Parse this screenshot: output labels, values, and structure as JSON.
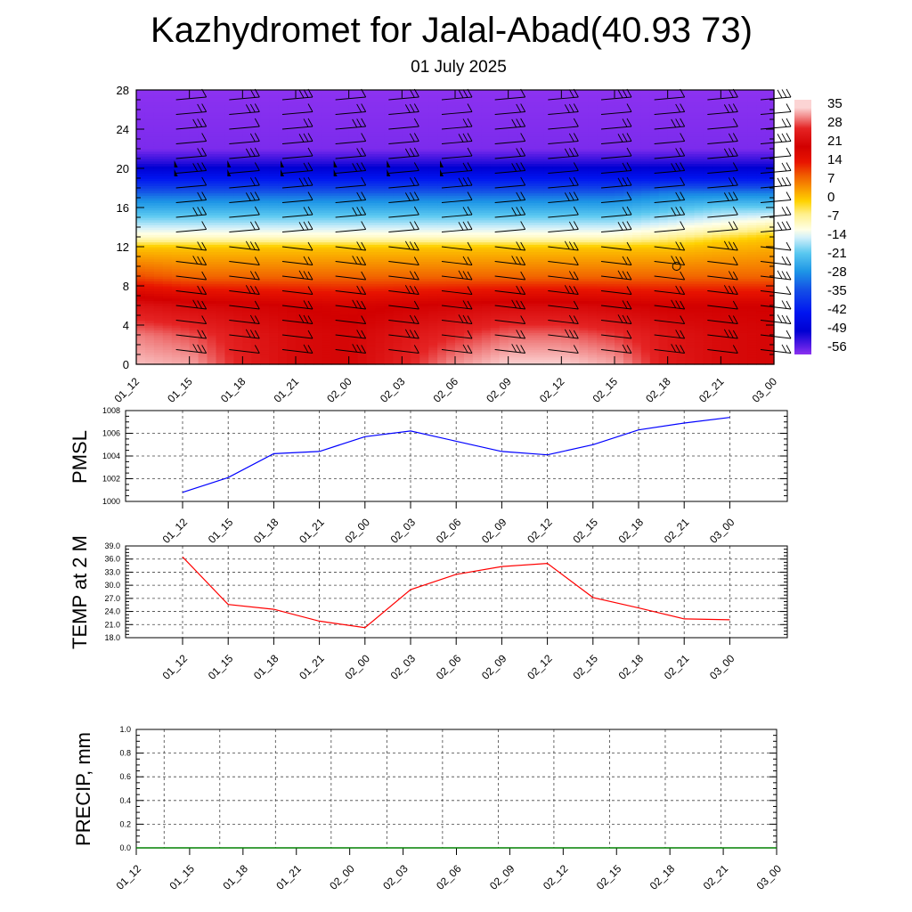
{
  "header": {
    "title": "Kazhydromet for Jalal-Abad(40.93 73)",
    "subtitle": "01 July 2025"
  },
  "time_labels": [
    "01_12",
    "01_15",
    "01_18",
    "01_21",
    "02_00",
    "02_03",
    "02_06",
    "02_09",
    "02_12",
    "02_15",
    "02_18",
    "02_21",
    "03_00"
  ],
  "chart_data": [
    {
      "id": "cross-section",
      "type": "heatmap",
      "title": "",
      "x": [
        "01_12",
        "01_15",
        "01_18",
        "01_21",
        "02_00",
        "02_03",
        "02_06",
        "02_09",
        "02_12",
        "02_15",
        "02_18",
        "02_21",
        "03_00"
      ],
      "ylim": [
        0,
        28
      ],
      "yticks": [
        0,
        4,
        8,
        12,
        16,
        20,
        24,
        28
      ],
      "field": "temperature",
      "colorbar": {
        "labels": [
          "35",
          "28",
          "21",
          "14",
          "7",
          "0",
          "-7",
          "-14",
          "-21",
          "-28",
          "-35",
          "-42",
          "-49",
          "-56"
        ],
        "stops": [
          {
            "value": 35,
            "color": "#fcd4d4"
          },
          {
            "value": 31,
            "color": "#f08080"
          },
          {
            "value": 27,
            "color": "#e52424"
          },
          {
            "value": 20,
            "color": "#d20000"
          },
          {
            "value": 14,
            "color": "#e81400"
          },
          {
            "value": 9,
            "color": "#f05a00"
          },
          {
            "value": 4,
            "color": "#f89600"
          },
          {
            "value": -1,
            "color": "#ffd200"
          },
          {
            "value": -6,
            "color": "#fff08c"
          },
          {
            "value": -12,
            "color": "#ffffe6"
          },
          {
            "value": -15,
            "color": "#d2f0fa"
          },
          {
            "value": -21,
            "color": "#5ac8f0"
          },
          {
            "value": -28,
            "color": "#1e96e6"
          },
          {
            "value": -35,
            "color": "#1450e6"
          },
          {
            "value": -44,
            "color": "#0014f0"
          },
          {
            "value": -51,
            "color": "#0000d2"
          },
          {
            "value": -57,
            "color": "#5a1ee6"
          },
          {
            "value": -60,
            "color": "#8c32f0"
          }
        ]
      },
      "column_temps": [
        {
          "x": "01_12",
          "levels": [
            [
              0,
              34
            ],
            [
              3,
              31
            ],
            [
              6,
              24
            ],
            [
              9,
              10
            ],
            [
              12,
              0
            ],
            [
              13,
              -10
            ],
            [
              15,
              -20
            ],
            [
              17,
              -30
            ],
            [
              19,
              -44
            ],
            [
              20.5,
              -53
            ],
            [
              22,
              -59
            ],
            [
              28,
              -60
            ]
          ]
        },
        {
          "x": "01_15",
          "levels": [
            [
              0,
              33
            ],
            [
              3,
              29
            ],
            [
              6,
              22
            ],
            [
              9,
              8
            ],
            [
              12,
              0
            ],
            [
              13,
              -10
            ],
            [
              15,
              -20
            ],
            [
              17,
              -30
            ],
            [
              19,
              -44
            ],
            [
              20.5,
              -53
            ],
            [
              22,
              -59
            ],
            [
              28,
              -60
            ]
          ]
        },
        {
          "x": "01_18",
          "levels": [
            [
              0,
              26
            ],
            [
              3,
              25
            ],
            [
              6,
              21
            ],
            [
              9,
              8
            ],
            [
              12,
              0
            ],
            [
              13,
              -10
            ],
            [
              15,
              -20
            ],
            [
              17,
              -30
            ],
            [
              19,
              -44
            ],
            [
              20.5,
              -53
            ],
            [
              22,
              -59
            ],
            [
              28,
              -60
            ]
          ]
        },
        {
          "x": "01_21",
          "levels": [
            [
              0,
              22
            ],
            [
              3,
              22
            ],
            [
              6,
              20
            ],
            [
              9,
              8
            ],
            [
              12,
              0
            ],
            [
              13,
              -10
            ],
            [
              15,
              -20
            ],
            [
              17,
              -30
            ],
            [
              19,
              -44
            ],
            [
              20.5,
              -53
            ],
            [
              22,
              -59
            ],
            [
              28,
              -60
            ]
          ]
        },
        {
          "x": "02_00",
          "levels": [
            [
              0,
              21
            ],
            [
              3,
              21
            ],
            [
              6,
              19
            ],
            [
              9,
              8
            ],
            [
              12,
              0
            ],
            [
              13,
              -10
            ],
            [
              15,
              -20
            ],
            [
              17,
              -30
            ],
            [
              19,
              -44
            ],
            [
              20.5,
              -53
            ],
            [
              22,
              -59
            ],
            [
              28,
              -60
            ]
          ]
        },
        {
          "x": "02_03",
          "levels": [
            [
              0,
              26
            ],
            [
              3,
              24
            ],
            [
              6,
              20
            ],
            [
              9,
              8
            ],
            [
              12,
              0
            ],
            [
              13,
              -10
            ],
            [
              15,
              -20
            ],
            [
              17,
              -30
            ],
            [
              19,
              -44
            ],
            [
              20.5,
              -53
            ],
            [
              22,
              -59
            ],
            [
              28,
              -60
            ]
          ]
        },
        {
          "x": "02_06",
          "levels": [
            [
              0,
              32
            ],
            [
              3,
              27
            ],
            [
              6,
              21
            ],
            [
              9,
              8
            ],
            [
              12,
              0
            ],
            [
              13,
              -10
            ],
            [
              15,
              -20
            ],
            [
              17,
              -30
            ],
            [
              19,
              -44
            ],
            [
              20.5,
              -53
            ],
            [
              22,
              -59
            ],
            [
              28,
              -60
            ]
          ]
        },
        {
          "x": "02_09",
          "levels": [
            [
              0,
              35
            ],
            [
              3,
              30
            ],
            [
              6,
              22
            ],
            [
              9,
              8
            ],
            [
              12,
              0
            ],
            [
              13,
              -10
            ],
            [
              15,
              -20
            ],
            [
              17,
              -30
            ],
            [
              19,
              -44
            ],
            [
              20.5,
              -53
            ],
            [
              22,
              -59
            ],
            [
              28,
              -60
            ]
          ]
        },
        {
          "x": "02_12",
          "levels": [
            [
              0,
              35
            ],
            [
              3,
              30
            ],
            [
              6,
              22
            ],
            [
              9,
              8
            ],
            [
              12,
              0
            ],
            [
              13,
              -10
            ],
            [
              15,
              -20
            ],
            [
              17,
              -30
            ],
            [
              19,
              -44
            ],
            [
              20.5,
              -53
            ],
            [
              22,
              -59
            ],
            [
              28,
              -60
            ]
          ]
        },
        {
          "x": "02_15",
          "levels": [
            [
              0,
              33
            ],
            [
              3,
              28
            ],
            [
              6,
              21
            ],
            [
              9,
              8
            ],
            [
              12,
              0
            ],
            [
              13,
              -10
            ],
            [
              15,
              -20
            ],
            [
              17,
              -30
            ],
            [
              19,
              -44
            ],
            [
              20.5,
              -53
            ],
            [
              22,
              -59
            ],
            [
              28,
              -60
            ]
          ]
        },
        {
          "x": "02_18",
          "levels": [
            [
              0,
              25
            ],
            [
              3,
              24
            ],
            [
              6,
              20
            ],
            [
              9,
              8
            ],
            [
              12,
              0
            ],
            [
              13.5,
              -10
            ],
            [
              15.5,
              -20
            ],
            [
              17.5,
              -30
            ],
            [
              19,
              -44
            ],
            [
              20.5,
              -53
            ],
            [
              22,
              -59
            ],
            [
              28,
              -60
            ]
          ]
        },
        {
          "x": "02_21",
          "levels": [
            [
              0,
              22
            ],
            [
              3,
              22
            ],
            [
              6,
              20
            ],
            [
              9,
              8
            ],
            [
              12.5,
              0
            ],
            [
              14,
              -10
            ],
            [
              16,
              -20
            ],
            [
              17.5,
              -30
            ],
            [
              19,
              -44
            ],
            [
              20.5,
              -53
            ],
            [
              22,
              -59
            ],
            [
              28,
              -60
            ]
          ]
        },
        {
          "x": "03_00",
          "levels": [
            [
              0,
              21
            ],
            [
              3,
              21
            ],
            [
              6,
              20
            ],
            [
              9,
              8
            ],
            [
              13,
              0
            ],
            [
              14.5,
              -10
            ],
            [
              16,
              -20
            ],
            [
              17.5,
              -30
            ],
            [
              19,
              -44
            ],
            [
              20.5,
              -53
            ],
            [
              22,
              -59
            ],
            [
              28,
              -60
            ]
          ]
        }
      ],
      "wind_barbs": {
        "x": [
          "01_15",
          "01_18",
          "01_21",
          "02_00",
          "02_03",
          "02_06",
          "02_09",
          "02_12",
          "02_15",
          "02_18",
          "02_21",
          "03_00"
        ],
        "levels": [
          27,
          25.5,
          24,
          22.5,
          21,
          19.5,
          18,
          16.5,
          15,
          13.5,
          12,
          10.5,
          9,
          7.5,
          6,
          4.5,
          3,
          1.5
        ],
        "flag_level": 20,
        "flag_columns": [
          "01_15",
          "01_18",
          "01_21",
          "02_00",
          "02_03",
          "02_06"
        ],
        "calm_marker": {
          "x": "02_18",
          "level": 10
        }
      }
    },
    {
      "id": "pmsl",
      "type": "line",
      "ylabel": "PMSL",
      "x": [
        "01_12",
        "01_15",
        "01_18",
        "01_21",
        "02_00",
        "02_03",
        "02_06",
        "02_09",
        "02_12",
        "02_15",
        "02_18",
        "02_21",
        "03_00"
      ],
      "ylim": [
        1000,
        1008
      ],
      "yticks": [
        "1000",
        "1002",
        "1004",
        "1006",
        "1008"
      ],
      "grid": true,
      "series": [
        {
          "values": [
            1000.8,
            1002.1,
            1004.2,
            1004.4,
            1005.7,
            1006.2,
            1005.3,
            1004.4,
            1004.1,
            1005.0,
            1006.3,
            1006.9,
            1007.4
          ],
          "color": "#0000ff"
        }
      ]
    },
    {
      "id": "temp2m",
      "type": "line",
      "ylabel": "TEMP at 2 M",
      "x": [
        "01_12",
        "01_15",
        "01_18",
        "01_21",
        "02_00",
        "02_03",
        "02_06",
        "02_09",
        "02_12",
        "02_15",
        "02_18",
        "02_21",
        "03_00"
      ],
      "ylim": [
        18,
        39
      ],
      "yticks": [
        "18.0",
        "21.0",
        "24.0",
        "27.0",
        "30.0",
        "33.0",
        "36.0",
        "39.0"
      ],
      "grid": true,
      "series": [
        {
          "values": [
            36.5,
            25.6,
            24.5,
            21.8,
            20.3,
            29.0,
            32.5,
            34.3,
            35.0,
            27.2,
            24.8,
            22.3,
            22.1
          ],
          "color": "#ff0000"
        }
      ]
    },
    {
      "id": "precip",
      "type": "line",
      "ylabel": "PRECIP, mm",
      "x": [
        "01_12",
        "01_15",
        "01_18",
        "01_21",
        "02_00",
        "02_03",
        "02_06",
        "02_09",
        "02_12",
        "02_15",
        "02_18",
        "02_21",
        "03_00"
      ],
      "ylim": [
        0,
        1
      ],
      "yticks": [
        "0.0",
        "0.2",
        "0.4",
        "0.6",
        "0.8",
        "1.0"
      ],
      "grid": true,
      "series": [
        {
          "values": [
            0,
            0,
            0,
            0,
            0,
            0,
            0,
            0,
            0,
            0,
            0,
            0,
            0
          ],
          "color": "#008000"
        }
      ]
    }
  ]
}
